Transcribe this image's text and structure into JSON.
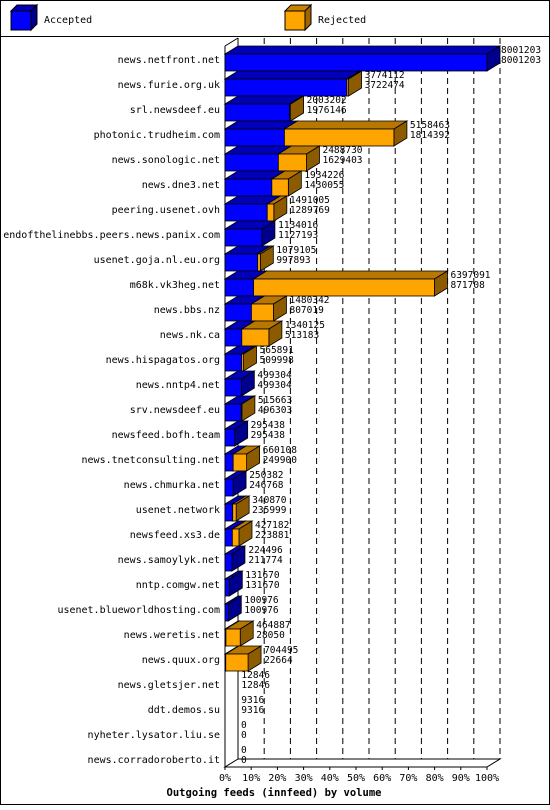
{
  "legend": [
    {
      "label": "Accepted",
      "color": "#0000ff"
    },
    {
      "label": "Rejected",
      "color": "#ffa500"
    }
  ],
  "chart_data": {
    "type": "bar",
    "orientation": "horizontal",
    "xlabel": "Outgoing feeds (innfeed) by volume",
    "x_ticks": [
      "0%",
      "10%",
      "20%",
      "30%",
      "40%",
      "50%",
      "60%",
      "70%",
      "80%",
      "90%",
      "100%"
    ],
    "xlim": [
      0,
      8001203
    ],
    "grid": true,
    "legend_position": "top",
    "categories": [
      "news.netfront.net",
      "news.furie.org.uk",
      "srl.newsdeef.eu",
      "photonic.trudheim.com",
      "news.sonologic.net",
      "news.dne3.net",
      "peering.usenet.ovh",
      "endofthelinebbs.peers.news.panix.com",
      "usenet.goja.nl.eu.org",
      "m68k.vk3heg.net",
      "news.bbs.nz",
      "news.nk.ca",
      "news.hispagatos.org",
      "news.nntp4.net",
      "srv.newsdeef.eu",
      "newsfeed.bofh.team",
      "news.tnetconsulting.net",
      "news.chmurka.net",
      "usenet.network",
      "newsfeed.xs3.de",
      "news.samoylyk.net",
      "nntp.comgw.net",
      "usenet.blueworldhosting.com",
      "news.weretis.net",
      "news.quux.org",
      "news.gletsjer.net",
      "ddt.demos.su",
      "nyheter.lysator.liu.se",
      "news.corradoroberto.it"
    ],
    "series": [
      {
        "name": "Accepted",
        "color": "#0000ff",
        "values": [
          8001203,
          3722474,
          1976146,
          1814392,
          1629403,
          1430055,
          1289769,
          1127193,
          997893,
          871708,
          807019,
          513183,
          509998,
          499304,
          496303,
          295438,
          249900,
          246768,
          235999,
          223881,
          211774,
          131670,
          100976,
          28050,
          22664,
          12846,
          9316,
          0,
          0
        ]
      },
      {
        "name": "Rejected",
        "color": "#ffa500",
        "values": [
          0,
          51638,
          27056,
          3344071,
          859327,
          504171,
          201236,
          6823,
          81212,
          5525383,
          673323,
          826942,
          55893,
          0,
          19360,
          0,
          410208,
          3614,
          104871,
          203301,
          12722,
          0,
          0,
          436837,
          681831,
          0,
          0,
          0,
          0
        ]
      }
    ],
    "bar_labels": [
      [
        "8001203",
        "8001203"
      ],
      [
        "3774112",
        "3722474"
      ],
      [
        "2003202",
        "1976146"
      ],
      [
        "5158463",
        "1814392"
      ],
      [
        "2488730",
        "1629403"
      ],
      [
        "1934226",
        "1430055"
      ],
      [
        "1491005",
        "1289769"
      ],
      [
        "1134016",
        "1127193"
      ],
      [
        "1079105",
        "997893"
      ],
      [
        "6397091",
        "871708"
      ],
      [
        "1480342",
        "807019"
      ],
      [
        "1340125",
        "513183"
      ],
      [
        "565891",
        "509998"
      ],
      [
        "499304",
        "499304"
      ],
      [
        "515663",
        "496303"
      ],
      [
        "295438",
        "295438"
      ],
      [
        "660108",
        "249900"
      ],
      [
        "250382",
        "246768"
      ],
      [
        "340870",
        "235999"
      ],
      [
        "427182",
        "223881"
      ],
      [
        "224496",
        "211774"
      ],
      [
        "131670",
        "131670"
      ],
      [
        "100976",
        "100976"
      ],
      [
        "464887",
        "28050"
      ],
      [
        "704495",
        "22664"
      ],
      [
        "12846",
        "12846"
      ],
      [
        "9316",
        "9316"
      ],
      [
        "0",
        "0"
      ],
      [
        "0",
        "0"
      ]
    ]
  }
}
